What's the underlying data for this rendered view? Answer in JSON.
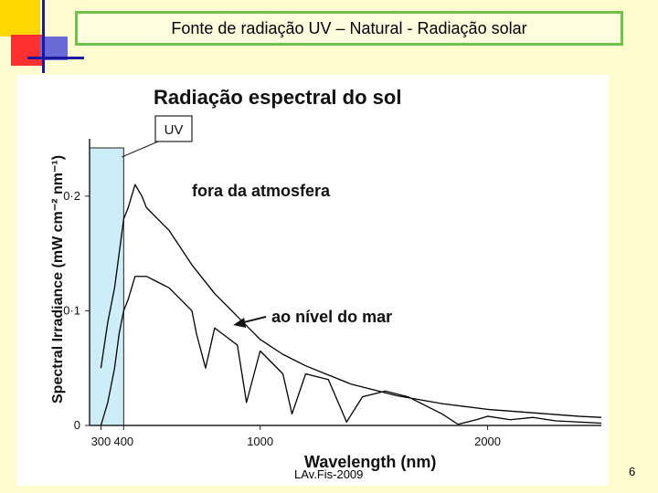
{
  "slide": {
    "title": "Fonte de radiação UV – Natural - Radiação solar",
    "footer": "LAv.Fis-2009",
    "page_number": "6"
  },
  "colors": {
    "background": "#fffdd0",
    "title_border": "#6cc24a",
    "deco_yellow": "#ffd700",
    "deco_red": "#ff3030",
    "deco_blue": "#1a1aa0",
    "uv_band": "#cdeef8",
    "curve": "#000000"
  },
  "chart_data": {
    "type": "line",
    "title": "Radiação espectral do sol",
    "xlabel": "Wavelength (nm)",
    "ylabel": "Spectral Irradiance (mW cm⁻² nm⁻¹)",
    "xlim": [
      250,
      2500
    ],
    "ylim": [
      0,
      0.25
    ],
    "x_ticks": [
      300,
      400,
      1000,
      2000
    ],
    "x_tick_labels": [
      "300",
      "400",
      "1000",
      "2000"
    ],
    "y_ticks": [
      0,
      0.1,
      0.2
    ],
    "y_tick_labels": [
      "0",
      "0·1",
      "0·2"
    ],
    "uv_band": {
      "label": "UV",
      "x_range": [
        250,
        400
      ]
    },
    "series": [
      {
        "name": "fora da atmosfera",
        "x": [
          300,
          330,
          360,
          380,
          400,
          420,
          450,
          480,
          500,
          550,
          600,
          700,
          800,
          900,
          1000,
          1100,
          1200,
          1400,
          1600,
          1800,
          2000,
          2200,
          2400,
          2500
        ],
        "y": [
          0.05,
          0.09,
          0.12,
          0.15,
          0.18,
          0.19,
          0.21,
          0.2,
          0.19,
          0.18,
          0.17,
          0.14,
          0.115,
          0.095,
          0.075,
          0.062,
          0.052,
          0.036,
          0.026,
          0.019,
          0.014,
          0.011,
          0.008,
          0.007
        ]
      },
      {
        "name": "ao nível do mar",
        "x": [
          300,
          330,
          360,
          380,
          400,
          420,
          450,
          500,
          550,
          600,
          650,
          700,
          720,
          760,
          800,
          900,
          940,
          1000,
          1100,
          1140,
          1200,
          1300,
          1380,
          1450,
          1550,
          1650,
          1800,
          1870,
          1950,
          2000,
          2100,
          2200,
          2300,
          2400,
          2500
        ],
        "y": [
          0.0,
          0.02,
          0.05,
          0.08,
          0.1,
          0.11,
          0.13,
          0.13,
          0.125,
          0.12,
          0.11,
          0.1,
          0.08,
          0.05,
          0.085,
          0.07,
          0.02,
          0.065,
          0.045,
          0.01,
          0.045,
          0.04,
          0.003,
          0.025,
          0.03,
          0.025,
          0.01,
          0.001,
          0.005,
          0.008,
          0.005,
          0.007,
          0.004,
          0.003,
          0.002
        ]
      }
    ],
    "annotations": [
      {
        "text": "fora da atmosfera",
        "x": 700,
        "y": 0.2
      },
      {
        "text": "ao nível do mar",
        "x": 1050,
        "y": 0.09
      }
    ]
  }
}
